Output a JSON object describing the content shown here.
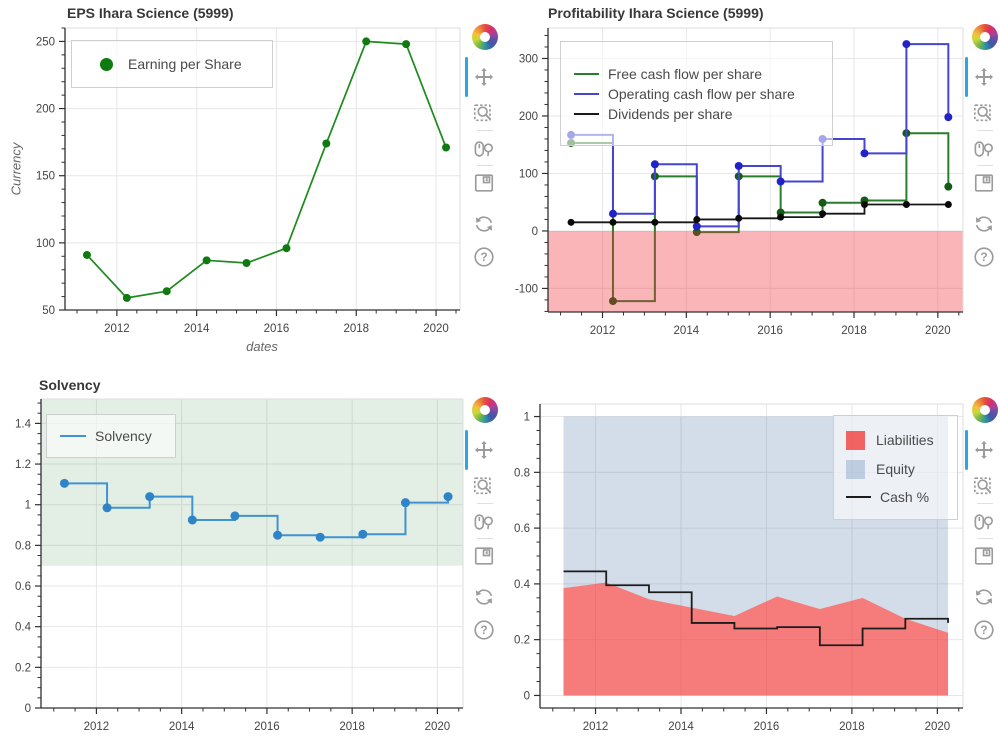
{
  "colors": {
    "grid": "#e7e7e7",
    "outline": "#dedede",
    "axis": "#303030",
    "tick_label": "#444444",
    "title": "#383838",
    "icon": "#9b9b9b",
    "active_tool": "#28a8e0",
    "legend_border": "#cfcfcf"
  },
  "toolbar": {
    "tools": [
      {
        "id": "pan",
        "active": true
      },
      {
        "id": "box-zoom",
        "active": false
      },
      {
        "id": "wheel-zoom",
        "active": false
      },
      {
        "id": "save",
        "active": false
      },
      {
        "id": "reset",
        "active": false
      },
      {
        "id": "help",
        "active": false
      }
    ]
  },
  "chart_data": [
    {
      "id": "eps",
      "type": "line",
      "title": "EPS Ihara Science (5999)",
      "xlabel": "dates",
      "ylabel": "Currency",
      "x": [
        2011.25,
        2012.25,
        2013.25,
        2014.25,
        2015.25,
        2016.25,
        2017.25,
        2018.25,
        2019.25,
        2020.25
      ],
      "x_range": [
        2010.7,
        2020.6
      ],
      "y_range": [
        50,
        260
      ],
      "x_ticks": [
        2012,
        2014,
        2016,
        2018,
        2020
      ],
      "y_ticks": [
        50,
        100,
        150,
        200,
        250
      ],
      "x_minor_step": 0.5,
      "y_minor_step": 10,
      "bands": [],
      "series": [
        {
          "name": "Earning per Share",
          "type": "line",
          "color": "#1c8a1c",
          "width": 1.7,
          "marker": {
            "r": 4,
            "color": "#0f7a0f"
          },
          "values": [
            91,
            59,
            64,
            87,
            85,
            96,
            174,
            250,
            248,
            171
          ]
        }
      ],
      "legend": {
        "entries": [
          {
            "label": "Earning per Share",
            "marker": "circle",
            "color": "#0f7a0f"
          }
        ]
      }
    },
    {
      "id": "profitability",
      "type": "step",
      "title": "Profitability Ihara Science (5999)",
      "xlabel": "",
      "ylabel": "",
      "x": [
        2011.25,
        2012.25,
        2013.25,
        2014.25,
        2015.25,
        2016.25,
        2017.25,
        2018.25,
        2019.25,
        2020.25
      ],
      "x_range": [
        2010.7,
        2020.6
      ],
      "y_range": [
        -141,
        353
      ],
      "x_ticks": [
        2012,
        2014,
        2016,
        2018,
        2020
      ],
      "y_ticks": [
        -100,
        0,
        100,
        200,
        300
      ],
      "x_minor_step": 0.5,
      "y_minor_step": 20,
      "bands": [
        {
          "from": -141,
          "to": 0,
          "color": "rgba(240,50,60,0.36)",
          "layer": "over"
        }
      ],
      "series": [
        {
          "name": "Free cash flow per share",
          "type": "step",
          "color": "#2a7d2a",
          "width": 2,
          "marker": {
            "r": 4,
            "color": "#145c14"
          },
          "values": [
            153,
            -122,
            95,
            -2,
            95,
            32,
            49,
            53,
            170,
            77
          ]
        },
        {
          "name": "Operating cash flow per share",
          "type": "step",
          "color": "#4545d2",
          "width": 2,
          "marker": {
            "r": 4,
            "color": "#2222c8"
          },
          "values": [
            167,
            30,
            116,
            8,
            113,
            86,
            160,
            135,
            325,
            198
          ]
        },
        {
          "name": "Dividends per share",
          "type": "step",
          "color": "#181818",
          "width": 1.8,
          "marker": {
            "r": 3.5,
            "color": "#0a0a0a"
          },
          "values": [
            15,
            15,
            15,
            20,
            22,
            24,
            30,
            46,
            46,
            46
          ]
        }
      ],
      "legend": {
        "entries": [
          {
            "label": "Free cash flow per share",
            "marker": "line",
            "color": "#2a7d2a"
          },
          {
            "label": "Operating cash flow per share",
            "marker": "line",
            "color": "#4545d2"
          },
          {
            "label": "Dividends per share",
            "marker": "line",
            "color": "#181818"
          }
        ]
      }
    },
    {
      "id": "solvency",
      "type": "step",
      "title": "Solvency",
      "xlabel": "",
      "ylabel": "",
      "x": [
        2011.25,
        2012.25,
        2013.25,
        2014.25,
        2015.25,
        2016.25,
        2017.25,
        2018.25,
        2019.25,
        2020.25
      ],
      "x_range": [
        2010.7,
        2020.6
      ],
      "y_range": [
        0,
        1.52
      ],
      "x_ticks": [
        2012,
        2014,
        2016,
        2018,
        2020
      ],
      "y_ticks": [
        0,
        0.2,
        0.4,
        0.6,
        0.8,
        1,
        1.2,
        1.4
      ],
      "x_minor_step": 0.5,
      "y_minor_step": 0.05,
      "bands": [
        {
          "from": 0.7,
          "to": 1.52,
          "color": "rgba(70,140,80,0.15)",
          "layer": "under"
        }
      ],
      "series": [
        {
          "name": "Solvency",
          "type": "step",
          "color": "#3f93d2",
          "width": 2,
          "marker": {
            "r": 4.5,
            "color": "#2e84c6"
          },
          "values": [
            1.105,
            0.985,
            1.04,
            0.925,
            0.945,
            0.85,
            0.84,
            0.855,
            1.01,
            1.04
          ]
        }
      ],
      "legend": {
        "entries": [
          {
            "label": "Solvency",
            "marker": "line",
            "color": "#3f93d2"
          }
        ]
      }
    },
    {
      "id": "balance",
      "type": "area",
      "title": "",
      "xlabel": "",
      "ylabel": "",
      "x": [
        2011.25,
        2012.25,
        2013.25,
        2014.25,
        2015.25,
        2016.25,
        2017.25,
        2018.25,
        2019.25,
        2020.25
      ],
      "x_range": [
        2010.7,
        2020.6
      ],
      "y_range": [
        -0.045,
        1.045
      ],
      "x_ticks": [
        2012,
        2014,
        2016,
        2018,
        2020
      ],
      "y_ticks": [
        0,
        0.2,
        0.4,
        0.6,
        0.8,
        1
      ],
      "x_minor_step": 0.5,
      "y_minor_step": 0.05,
      "bands": [],
      "series": [
        {
          "name": "Liabilities",
          "type": "area",
          "color": "rgba(242,58,58,0.67)",
          "upper": [
            0.385,
            0.405,
            0.345,
            0.315,
            0.285,
            0.355,
            0.31,
            0.35,
            0.275,
            0.225
          ],
          "lower": 0
        },
        {
          "name": "Equity",
          "type": "area",
          "color": "rgba(70,110,165,0.24)",
          "upper": 1,
          "lower": [
            0.385,
            0.405,
            0.345,
            0.315,
            0.285,
            0.355,
            0.31,
            0.35,
            0.275,
            0.225
          ]
        },
        {
          "name": "Cash %",
          "type": "step",
          "color": "#1c1c1c",
          "width": 1.8,
          "values": [
            0.445,
            0.395,
            0.37,
            0.26,
            0.24,
            0.245,
            0.18,
            0.24,
            0.275,
            0.26
          ]
        }
      ],
      "legend": {
        "entries": [
          {
            "label": "Liabilities",
            "marker": "swatch",
            "color": "rgba(242,58,58,0.78)"
          },
          {
            "label": "Equity",
            "marker": "swatch",
            "color": "rgba(70,110,165,0.28)"
          },
          {
            "label": "Cash %",
            "marker": "line",
            "color": "#1c1c1c"
          }
        ]
      }
    }
  ]
}
